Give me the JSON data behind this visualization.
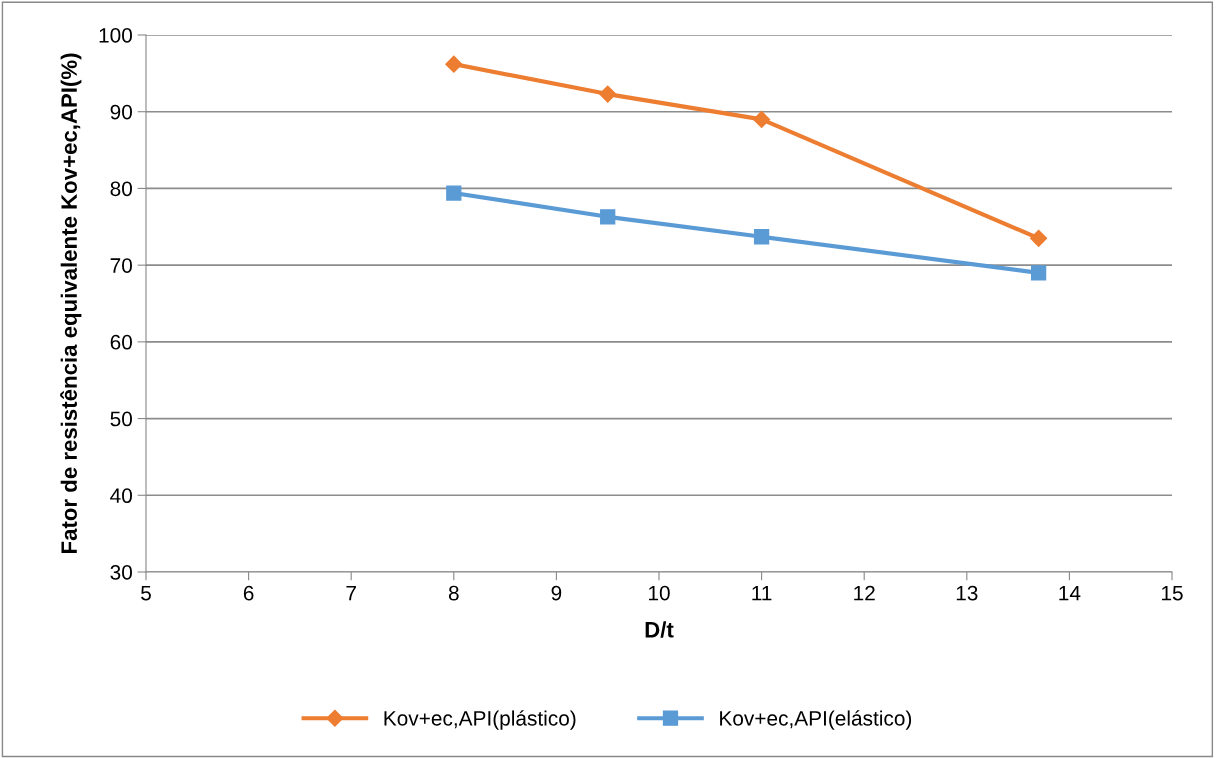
{
  "chart_data": {
    "type": "line",
    "xlabel": "D/t",
    "ylabel": "Fator de resistência equivalente Kov+ec,API(%)",
    "xlim": [
      5,
      15
    ],
    "xticks": [
      5,
      6,
      7,
      8,
      9,
      10,
      11,
      12,
      13,
      14,
      15
    ],
    "ylim": [
      30,
      100
    ],
    "yticks": [
      30,
      40,
      50,
      60,
      70,
      80,
      90,
      100
    ],
    "grid": "y",
    "legend": "bottom",
    "line_style": "solid",
    "series": [
      {
        "name": "Kov+ec,API(plástico)",
        "color": "#ed7d31",
        "marker": "diamond",
        "x": [
          8,
          9.5,
          11,
          13.7
        ],
        "values": [
          96.2,
          92.3,
          89.0,
          73.5
        ]
      },
      {
        "name": "Kov+ec,API(elástico)",
        "color": "#5b9bd5",
        "marker": "square",
        "x": [
          8,
          9.5,
          11,
          13.7
        ],
        "values": [
          79.4,
          76.3,
          73.7,
          69.0
        ]
      }
    ]
  }
}
